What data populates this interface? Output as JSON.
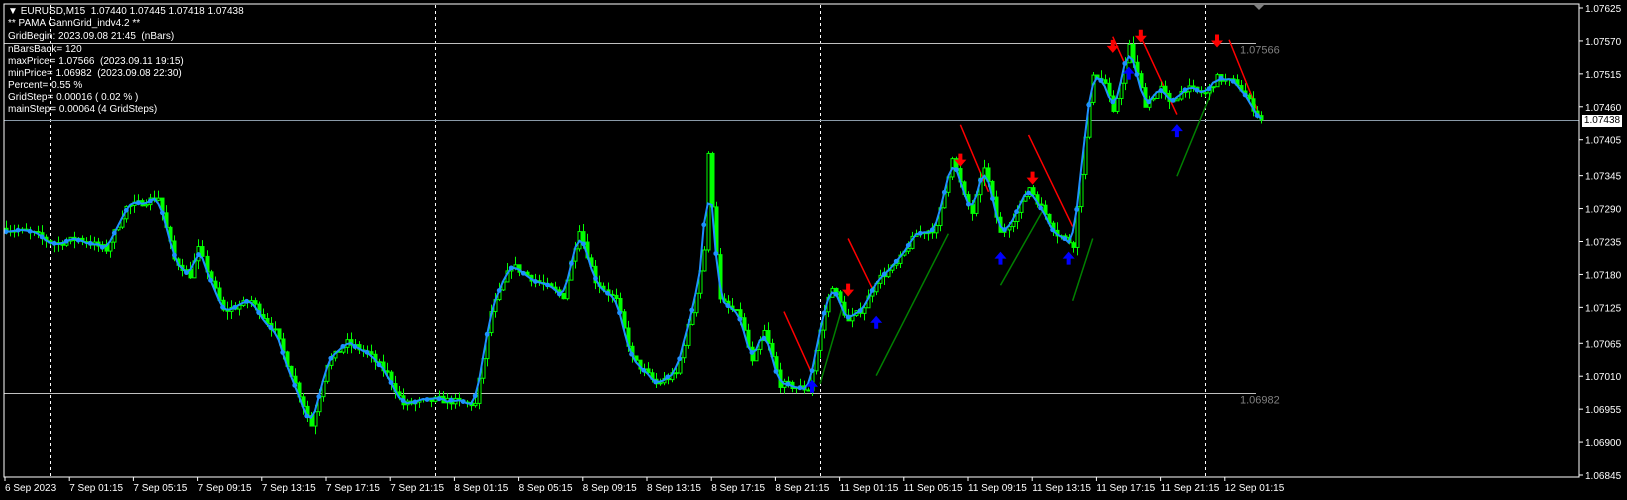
{
  "header": {
    "symbol_line": "EURUSD,M15  1.07440 1.07445 1.07418 1.07438",
    "indicator_name": "** PAMA GannGrid_indv4.2 **",
    "grid_begin": "GridBegin: 2023.09.08 21:45  (nBars)",
    "info_lines": [
      "nBarsBack= 120",
      "maxPrice= 1.07566  (2023.09.11 19:15)",
      "minPrice= 1.06982  (2023.09.08 22:30)",
      "Percent= 0.55 %",
      "GridStep= 0.00016 ( 0.02 % )",
      "mainStep= 0.00064 (4 GridSteps)"
    ]
  },
  "colors": {
    "background": "#000000",
    "candle": "#00ff00",
    "ma_line": "#1e90ff",
    "down_signal": "#ff0000",
    "up_signal": "#0000ff",
    "up_trend_line": "#008000",
    "down_trend_line": "#ff0000",
    "level_line": "#c0c0c0",
    "level_label": "#808080"
  },
  "chart_data": {
    "type": "candlestick",
    "symbol": "EURUSD",
    "timeframe": "M15",
    "ylim": [
      1.06845,
      1.07625
    ],
    "current_price": "1.07438",
    "price_ticks": [
      "1.07625",
      "1.07570",
      "1.07515",
      "1.07460",
      "1.07405",
      "1.07345",
      "1.07290",
      "1.07235",
      "1.07180",
      "1.07125",
      "1.07065",
      "1.07010",
      "1.06955",
      "1.06900",
      "1.06845"
    ],
    "time_ticks": [
      "6 Sep 2023",
      "7 Sep 01:15",
      "7 Sep 05:15",
      "7 Sep 09:15",
      "7 Sep 13:15",
      "7 Sep 17:15",
      "7 Sep 21:15",
      "8 Sep 01:15",
      "8 Sep 05:15",
      "8 Sep 09:15",
      "8 Sep 13:15",
      "8 Sep 17:15",
      "8 Sep 21:15",
      "11 Sep 01:15",
      "11 Sep 05:15",
      "11 Sep 09:15",
      "11 Sep 13:15",
      "11 Sep 17:15",
      "11 Sep 21:15",
      "12 Sep 01:15"
    ],
    "day_separators": [
      "2023-09-07 00:00",
      "2023-09-08 00:00",
      "2023-09-11 00:00",
      "2023-09-12 00:00"
    ],
    "levels": [
      {
        "price": 1.07566,
        "label": "1.07566"
      },
      {
        "price": 1.06982,
        "label": "1.06982"
      }
    ],
    "price_path": [
      [
        "2023-09-06 21:15",
        1.07257
      ],
      [
        "2023-09-06 23:00",
        1.07248
      ],
      [
        "2023-09-07 00:15",
        1.07231
      ],
      [
        "2023-09-07 01:45",
        1.0724
      ],
      [
        "2023-09-07 03:30",
        1.07222
      ],
      [
        "2023-09-07 04:45",
        1.07292
      ],
      [
        "2023-09-07 06:45",
        1.07309
      ],
      [
        "2023-09-07 07:45",
        1.07205
      ],
      [
        "2023-09-07 08:45",
        1.07179
      ],
      [
        "2023-09-07 09:15",
        1.07222
      ],
      [
        "2023-09-07 10:45",
        1.07118
      ],
      [
        "2023-09-07 12:30",
        1.07136
      ],
      [
        "2023-09-07 14:00",
        1.07084
      ],
      [
        "2023-09-07 15:30",
        1.0698
      ],
      [
        "2023-09-07 16:15",
        1.06928
      ],
      [
        "2023-09-07 17:15",
        1.07032
      ],
      [
        "2023-09-07 18:30",
        1.07066
      ],
      [
        "2023-09-07 19:45",
        1.07049
      ],
      [
        "2023-09-07 21:00",
        1.07014
      ],
      [
        "2023-09-07 22:00",
        1.06963
      ],
      [
        "2023-09-08 00:15",
        1.06971
      ],
      [
        "2023-09-08 02:30",
        1.06963
      ],
      [
        "2023-09-08 03:30",
        1.07118
      ],
      [
        "2023-09-08 04:45",
        1.07196
      ],
      [
        "2023-09-08 06:15",
        1.0717
      ],
      [
        "2023-09-08 08:00",
        1.07144
      ],
      [
        "2023-09-08 09:00",
        1.07257
      ],
      [
        "2023-09-08 10:00",
        1.0717
      ],
      [
        "2023-09-08 11:15",
        1.07136
      ],
      [
        "2023-09-08 12:15",
        1.0704
      ],
      [
        "2023-09-08 13:45",
        1.06997
      ],
      [
        "2023-09-08 15:00",
        1.07014
      ],
      [
        "2023-09-08 16:00",
        1.07118
      ],
      [
        "2023-09-08 16:45",
        1.07222
      ],
      [
        "2023-09-08 17:00",
        1.07378
      ],
      [
        "2023-09-08 17:45",
        1.07136
      ],
      [
        "2023-09-08 19:00",
        1.0711
      ],
      [
        "2023-09-08 19:45",
        1.07032
      ],
      [
        "2023-09-08 20:30",
        1.07084
      ],
      [
        "2023-09-08 21:30",
        1.06997
      ],
      [
        "2023-09-08 23:15",
        1.06988
      ],
      [
        "2023-09-11 00:15",
        1.07118
      ],
      [
        "2023-09-11 00:45",
        1.07162
      ],
      [
        "2023-09-11 01:45",
        1.07101
      ],
      [
        "2023-09-11 02:45",
        1.07127
      ],
      [
        "2023-09-11 03:30",
        1.0717
      ],
      [
        "2023-09-11 04:45",
        1.07196
      ],
      [
        "2023-09-11 06:00",
        1.07248
      ],
      [
        "2023-09-11 07:15",
        1.07257
      ],
      [
        "2023-09-11 08:15",
        1.07378
      ],
      [
        "2023-09-11 09:00",
        1.07309
      ],
      [
        "2023-09-11 09:30",
        1.07283
      ],
      [
        "2023-09-11 10:15",
        1.07361
      ],
      [
        "2023-09-11 11:15",
        1.07248
      ],
      [
        "2023-09-11 12:15",
        1.07283
      ],
      [
        "2023-09-11 13:00",
        1.07326
      ],
      [
        "2023-09-11 13:45",
        1.07292
      ],
      [
        "2023-09-11 14:45",
        1.07248
      ],
      [
        "2023-09-11 15:45",
        1.07231
      ],
      [
        "2023-09-11 16:15",
        1.07352
      ],
      [
        "2023-09-11 17:00",
        1.07517
      ],
      [
        "2023-09-11 17:45",
        1.07499
      ],
      [
        "2023-09-11 18:15",
        1.07447
      ],
      [
        "2023-09-11 19:15",
        1.0756
      ],
      [
        "2023-09-11 20:15",
        1.07465
      ],
      [
        "2023-09-11 21:15",
        1.07491
      ],
      [
        "2023-09-11 21:45",
        1.07465
      ],
      [
        "2023-09-11 22:45",
        1.07491
      ],
      [
        "2023-09-12 00:00",
        1.07482
      ],
      [
        "2023-09-12 00:45",
        1.07508
      ],
      [
        "2023-09-12 02:00",
        1.07499
      ],
      [
        "2023-09-12 03:30",
        1.07438
      ]
    ],
    "sell_arrows": [
      [
        "2023-09-11 01:45",
        1.07153
      ],
      [
        "2023-09-11 08:45",
        1.0737
      ],
      [
        "2023-09-11 13:15",
        1.0734
      ],
      [
        "2023-09-11 18:15",
        1.0756
      ],
      [
        "2023-09-11 20:00",
        1.07577
      ],
      [
        "2023-09-12 00:45",
        1.07569
      ]
    ],
    "buy_arrows": [
      [
        "2023-09-08 23:30",
        1.06994
      ],
      [
        "2023-09-11 03:30",
        1.07101
      ],
      [
        "2023-09-11 11:15",
        1.07208
      ],
      [
        "2023-09-11 15:30",
        1.07208
      ],
      [
        "2023-09-11 19:15",
        1.07517
      ],
      [
        "2023-09-11 22:15",
        1.07421
      ]
    ],
    "down_lines": [
      [
        [
          "2023-09-08 21:45",
          1.07118
        ],
        [
          "2023-09-08 23:30",
          1.07014
        ]
      ],
      [
        [
          "2023-09-11 01:45",
          1.0724
        ],
        [
          "2023-09-11 03:15",
          1.07157
        ]
      ],
      [
        [
          "2023-09-11 08:45",
          1.0743
        ],
        [
          "2023-09-11 10:30",
          1.07318
        ]
      ],
      [
        [
          "2023-09-11 13:00",
          1.07413
        ],
        [
          "2023-09-11 15:45",
          1.0726
        ]
      ],
      [
        [
          "2023-09-11 18:15",
          1.07577
        ],
        [
          "2023-09-11 19:15",
          1.07517
        ]
      ],
      [
        [
          "2023-09-11 20:00",
          1.07577
        ],
        [
          "2023-09-11 22:15",
          1.07447
        ]
      ],
      [
        [
          "2023-09-12 01:30",
          1.07572
        ],
        [
          "2023-09-12 03:30",
          1.07439
        ]
      ]
    ],
    "up_lines": [
      [
        [
          "2023-09-11 00:00",
          1.06997
        ],
        [
          "2023-09-11 01:30",
          1.07136
        ]
      ],
      [
        [
          "2023-09-11 03:30",
          1.07011
        ],
        [
          "2023-09-11 08:00",
          1.07248
        ]
      ],
      [
        [
          "2023-09-11 11:15",
          1.07162
        ],
        [
          "2023-09-11 14:00",
          1.07292
        ]
      ],
      [
        [
          "2023-09-11 15:45",
          1.07136
        ],
        [
          "2023-09-11 17:00",
          1.0724
        ]
      ],
      [
        [
          "2023-09-11 22:15",
          1.07344
        ],
        [
          "2023-09-12 00:30",
          1.07491
        ]
      ]
    ]
  }
}
